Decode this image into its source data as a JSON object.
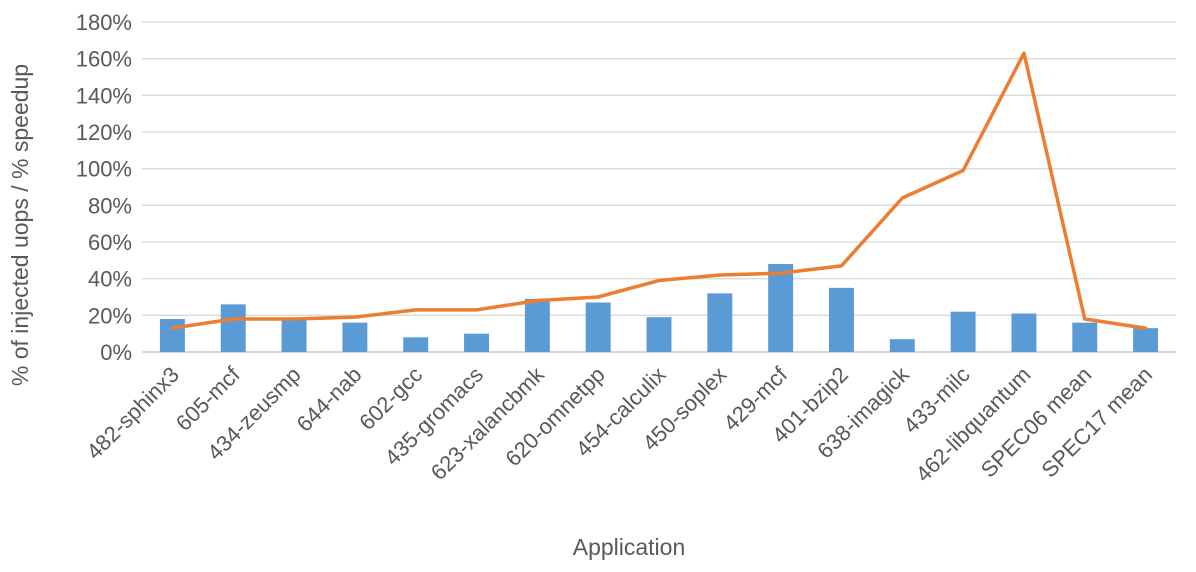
{
  "chart_data": {
    "type": "bar",
    "xlabel": "Application",
    "ylabel": "% of injected uops / % speedup",
    "ylim": [
      0,
      180
    ],
    "y_tick_step": 20,
    "y_tick_format": "percent",
    "grid": true,
    "legend": "none",
    "categories": [
      "482-sphinx3",
      "605-mcf",
      "434-zeusmp",
      "644-nab",
      "602-gcc",
      "435-gromacs",
      "623-xalancbmk",
      "620-omnetpp",
      "454-calculix",
      "450-soplex",
      "429-mcf",
      "401-bzip2",
      "638-imagick",
      "433-milc",
      "462-libquantum",
      "SPEC06 mean",
      "SPEC17 mean"
    ],
    "series": [
      {
        "type": "bar",
        "color": "#5b9bd5",
        "values": [
          18,
          26,
          18,
          16,
          8,
          10,
          29,
          27,
          19,
          32,
          48,
          35,
          7,
          22,
          21,
          16,
          13
        ]
      },
      {
        "type": "line",
        "color": "#ed7d31",
        "values": [
          13,
          18,
          18,
          19,
          23,
          23,
          28,
          30,
          39,
          42,
          43,
          47,
          84,
          99,
          163,
          18,
          13
        ]
      }
    ]
  }
}
